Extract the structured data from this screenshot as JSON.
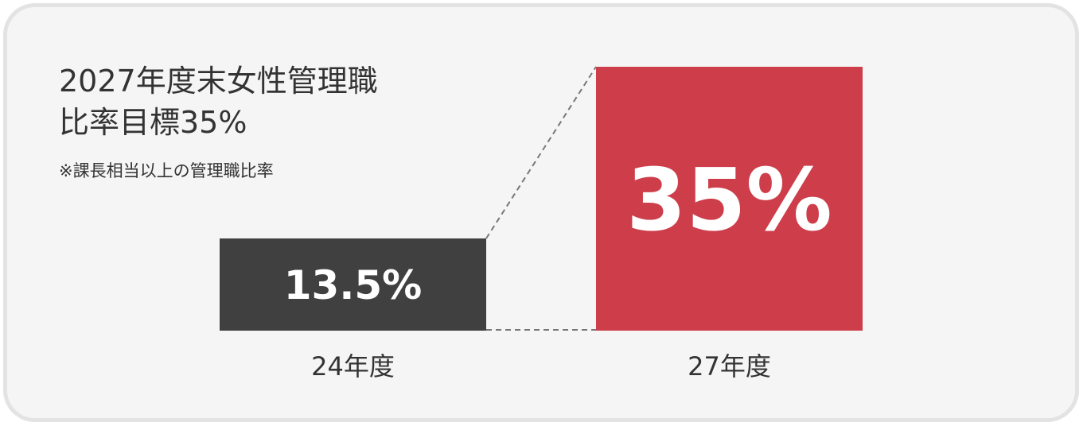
{
  "header": {
    "title_line1": "2027年度末女性管理職",
    "title_line2": "比率目標35%",
    "note": "※課長相当以上の管理職比率"
  },
  "colors": {
    "card_bg": "#f5f5f5",
    "card_border": "#e3e3e3",
    "bar_2024": "#404040",
    "bar_2027": "#cd3e4a",
    "text": "#333333",
    "dashed": "#777777"
  },
  "chart_data": {
    "type": "bar",
    "categories": [
      "24年度",
      "27年度"
    ],
    "values": [
      13.5,
      35
    ],
    "data_labels": [
      "13.5%",
      "35%"
    ],
    "unit": "%",
    "bar_colors": [
      "#404040",
      "#cd3e4a"
    ],
    "title": "2027年度末女性管理職比率目標35%",
    "xlabel": "",
    "ylabel": "",
    "grid": false,
    "legend": "none"
  }
}
